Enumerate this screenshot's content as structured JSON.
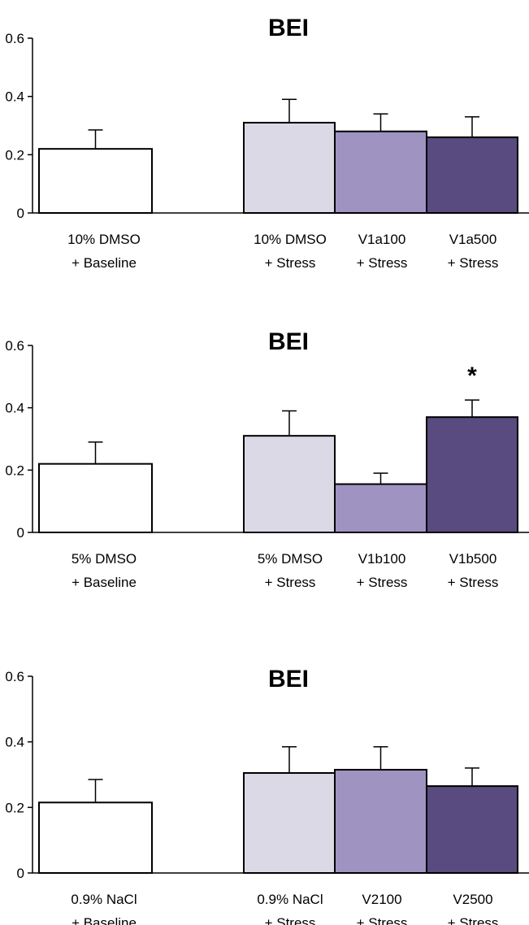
{
  "chart_data": [
    {
      "type": "bar",
      "title": "BEI",
      "ylim": [
        0,
        0.6
      ],
      "yticks": [
        "0",
        "0.2",
        "0.4",
        "0.6"
      ],
      "grid": false,
      "categories": [
        [
          "10% DMSO",
          "+ Baseline"
        ],
        [
          "10% DMSO",
          "+ Stress"
        ],
        [
          "V1a100",
          "+ Stress"
        ],
        [
          "V1a500",
          "+ Stress"
        ]
      ],
      "values": [
        0.22,
        0.31,
        0.28,
        0.26
      ],
      "errors": [
        0.065,
        0.08,
        0.06,
        0.07
      ],
      "colors": [
        "#ffffff",
        "#dcd9e6",
        "#9f93c2",
        "#594a7f"
      ],
      "annotations": [
        "",
        "",
        "",
        ""
      ]
    },
    {
      "type": "bar",
      "title": "BEI",
      "ylim": [
        0,
        0.6
      ],
      "yticks": [
        "0",
        "0.2",
        "0.4",
        "0.6"
      ],
      "grid": false,
      "categories": [
        [
          "5% DMSO",
          "+ Baseline"
        ],
        [
          "5% DMSO",
          "+ Stress"
        ],
        [
          "V1b100",
          "+ Stress"
        ],
        [
          "V1b500",
          "+ Stress"
        ]
      ],
      "values": [
        0.22,
        0.31,
        0.155,
        0.37
      ],
      "errors": [
        0.07,
        0.08,
        0.035,
        0.055
      ],
      "colors": [
        "#ffffff",
        "#dcd9e6",
        "#9f93c2",
        "#594a7f"
      ],
      "annotations": [
        "",
        "",
        "",
        "*"
      ]
    },
    {
      "type": "bar",
      "title": "BEI",
      "ylim": [
        0,
        0.6
      ],
      "yticks": [
        "0",
        "0.2",
        "0.4",
        "0.6"
      ],
      "grid": false,
      "categories": [
        [
          "0.9% NaCl",
          "+ Baseline"
        ],
        [
          "0.9% NaCl",
          "+ Stress"
        ],
        [
          "V2100",
          "+ Stress"
        ],
        [
          "V2500",
          "+ Stress"
        ]
      ],
      "values": [
        0.215,
        0.305,
        0.315,
        0.265
      ],
      "errors": [
        0.07,
        0.08,
        0.07,
        0.055
      ],
      "colors": [
        "#ffffff",
        "#dcd9e6",
        "#9f93c2",
        "#594a7f"
      ],
      "annotations": [
        "",
        "",
        "",
        ""
      ]
    }
  ]
}
